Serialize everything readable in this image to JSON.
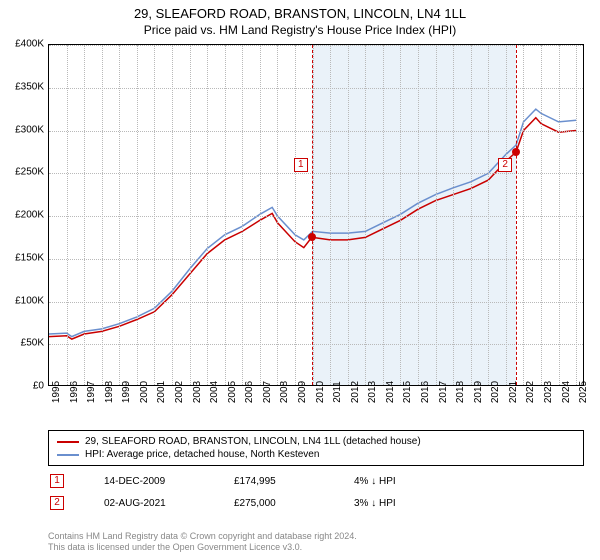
{
  "title": "29, SLEAFORD ROAD, BRANSTON, LINCOLN, LN4 1LL",
  "subtitle": "Price paid vs. HM Land Registry's House Price Index (HPI)",
  "chart": {
    "type": "line",
    "xlim": [
      1995,
      2025.5
    ],
    "ylim": [
      0,
      400000
    ],
    "ytick_step": 50000,
    "y_ticks": [
      "£0",
      "£50K",
      "£100K",
      "£150K",
      "£200K",
      "£250K",
      "£300K",
      "£350K",
      "£400K"
    ],
    "x_ticks": [
      "1995",
      "1996",
      "1997",
      "1998",
      "1999",
      "2000",
      "2001",
      "2002",
      "2003",
      "2004",
      "2005",
      "2006",
      "2007",
      "2008",
      "2009",
      "2010",
      "2011",
      "2012",
      "2013",
      "2014",
      "2015",
      "2016",
      "2017",
      "2018",
      "2019",
      "2020",
      "2021",
      "2022",
      "2023",
      "2024",
      "2025"
    ],
    "background_color": "#ffffff",
    "grid_color": "#b9b9b9",
    "shaded_region": {
      "x_from": 2009.95,
      "x_to": 2021.58,
      "color": "#eaf2f9"
    },
    "series": [
      {
        "name": "hpi",
        "color": "#6a8fce",
        "width": 1.5,
        "points": [
          [
            1995,
            62000
          ],
          [
            1996,
            63000
          ],
          [
            1996.3,
            59000
          ],
          [
            1997,
            65000
          ],
          [
            1998,
            68000
          ],
          [
            1999,
            74000
          ],
          [
            2000,
            82000
          ],
          [
            2001,
            92000
          ],
          [
            2002,
            112000
          ],
          [
            2003,
            138000
          ],
          [
            2004,
            162000
          ],
          [
            2005,
            178000
          ],
          [
            2006,
            188000
          ],
          [
            2007,
            202000
          ],
          [
            2007.7,
            210000
          ],
          [
            2008,
            200000
          ],
          [
            2009,
            178000
          ],
          [
            2009.5,
            172000
          ],
          [
            2010,
            182000
          ],
          [
            2011,
            180000
          ],
          [
            2012,
            180000
          ],
          [
            2013,
            182000
          ],
          [
            2014,
            192000
          ],
          [
            2015,
            202000
          ],
          [
            2016,
            215000
          ],
          [
            2017,
            225000
          ],
          [
            2018,
            233000
          ],
          [
            2019,
            240000
          ],
          [
            2020,
            250000
          ],
          [
            2021,
            272000
          ],
          [
            2021.58,
            283000
          ],
          [
            2022,
            310000
          ],
          [
            2022.7,
            325000
          ],
          [
            2023,
            320000
          ],
          [
            2024,
            310000
          ],
          [
            2025,
            312000
          ]
        ]
      },
      {
        "name": "price-paid",
        "color": "#c90000",
        "width": 1.5,
        "points": [
          [
            1995,
            59000
          ],
          [
            1996,
            60000
          ],
          [
            1996.3,
            56000
          ],
          [
            1997,
            62000
          ],
          [
            1998,
            65000
          ],
          [
            1999,
            71000
          ],
          [
            2000,
            79000
          ],
          [
            2001,
            88000
          ],
          [
            2002,
            108000
          ],
          [
            2003,
            132000
          ],
          [
            2004,
            156000
          ],
          [
            2005,
            172000
          ],
          [
            2006,
            182000
          ],
          [
            2007,
            195000
          ],
          [
            2007.7,
            203000
          ],
          [
            2008,
            192000
          ],
          [
            2009,
            170000
          ],
          [
            2009.5,
            163000
          ],
          [
            2009.95,
            174995
          ],
          [
            2010,
            175000
          ],
          [
            2011,
            172000
          ],
          [
            2012,
            172000
          ],
          [
            2013,
            175000
          ],
          [
            2014,
            185000
          ],
          [
            2015,
            195000
          ],
          [
            2016,
            208000
          ],
          [
            2017,
            218000
          ],
          [
            2018,
            225000
          ],
          [
            2019,
            232000
          ],
          [
            2020,
            242000
          ],
          [
            2021,
            264000
          ],
          [
            2021.58,
            275000
          ],
          [
            2022,
            300000
          ],
          [
            2022.7,
            315000
          ],
          [
            2023,
            308000
          ],
          [
            2024,
            298000
          ],
          [
            2025,
            300000
          ]
        ]
      }
    ],
    "markers": [
      {
        "n": "1",
        "x": 2009.95,
        "y": 174995,
        "label_y": 260000
      },
      {
        "n": "2",
        "x": 2021.58,
        "y": 275000,
        "label_y": 260000
      }
    ]
  },
  "legend": {
    "s1": {
      "label": "29, SLEAFORD ROAD, BRANSTON, LINCOLN, LN4 1LL (detached house)",
      "color": "#c90000"
    },
    "s2": {
      "label": "HPI: Average price, detached house, North Kesteven",
      "color": "#6a8fce"
    }
  },
  "sales": [
    {
      "n": "1",
      "date": "14-DEC-2009",
      "price": "£174,995",
      "diff": "4% ↓ HPI"
    },
    {
      "n": "2",
      "date": "02-AUG-2021",
      "price": "£275,000",
      "diff": "3% ↓ HPI"
    }
  ],
  "footer1": "Contains HM Land Registry data © Crown copyright and database right 2024.",
  "footer2": "This data is licensed under the Open Government Licence v3.0."
}
